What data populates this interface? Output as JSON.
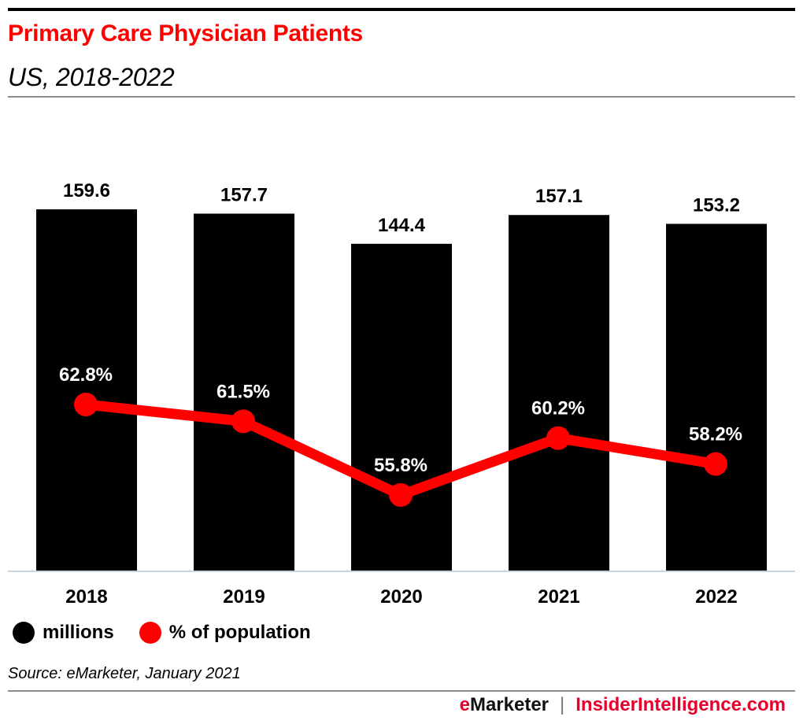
{
  "header": {
    "title": "Primary Care Physician Patients",
    "subtitle": "US, 2018-2022"
  },
  "chart_data": {
    "type": "bar",
    "title": "Primary Care Physician Patients",
    "subtitle": "US, 2018-2022",
    "xlabel": "",
    "ylabel": "",
    "categories": [
      "2018",
      "2019",
      "2020",
      "2021",
      "2022"
    ],
    "series": [
      {
        "name": "millions",
        "type": "bar",
        "color": "#000000",
        "values": [
          159.6,
          157.7,
          144.4,
          157.1,
          153.2
        ],
        "labels": [
          "159.6",
          "157.7",
          "144.4",
          "157.1",
          "153.2"
        ]
      },
      {
        "name": "% of population",
        "type": "line",
        "color": "#ff0000",
        "values": [
          62.8,
          61.5,
          55.8,
          60.2,
          58.2
        ],
        "labels": [
          "62.8%",
          "61.5%",
          "55.8%",
          "60.2%",
          "58.2%"
        ]
      }
    ],
    "ylim_bars": [
      0,
      159.6
    ],
    "grid": false,
    "legend_position": "bottom-left"
  },
  "legend": {
    "items": [
      {
        "label": "millions",
        "color": "#000000"
      },
      {
        "label": "% of population",
        "color": "#ff0000"
      }
    ]
  },
  "source": "Source: eMarketer, January 2021",
  "footer": {
    "brand_e": "e",
    "brand_rest": "Marketer",
    "separator": "|",
    "site": "InsiderIntelligence.com"
  }
}
